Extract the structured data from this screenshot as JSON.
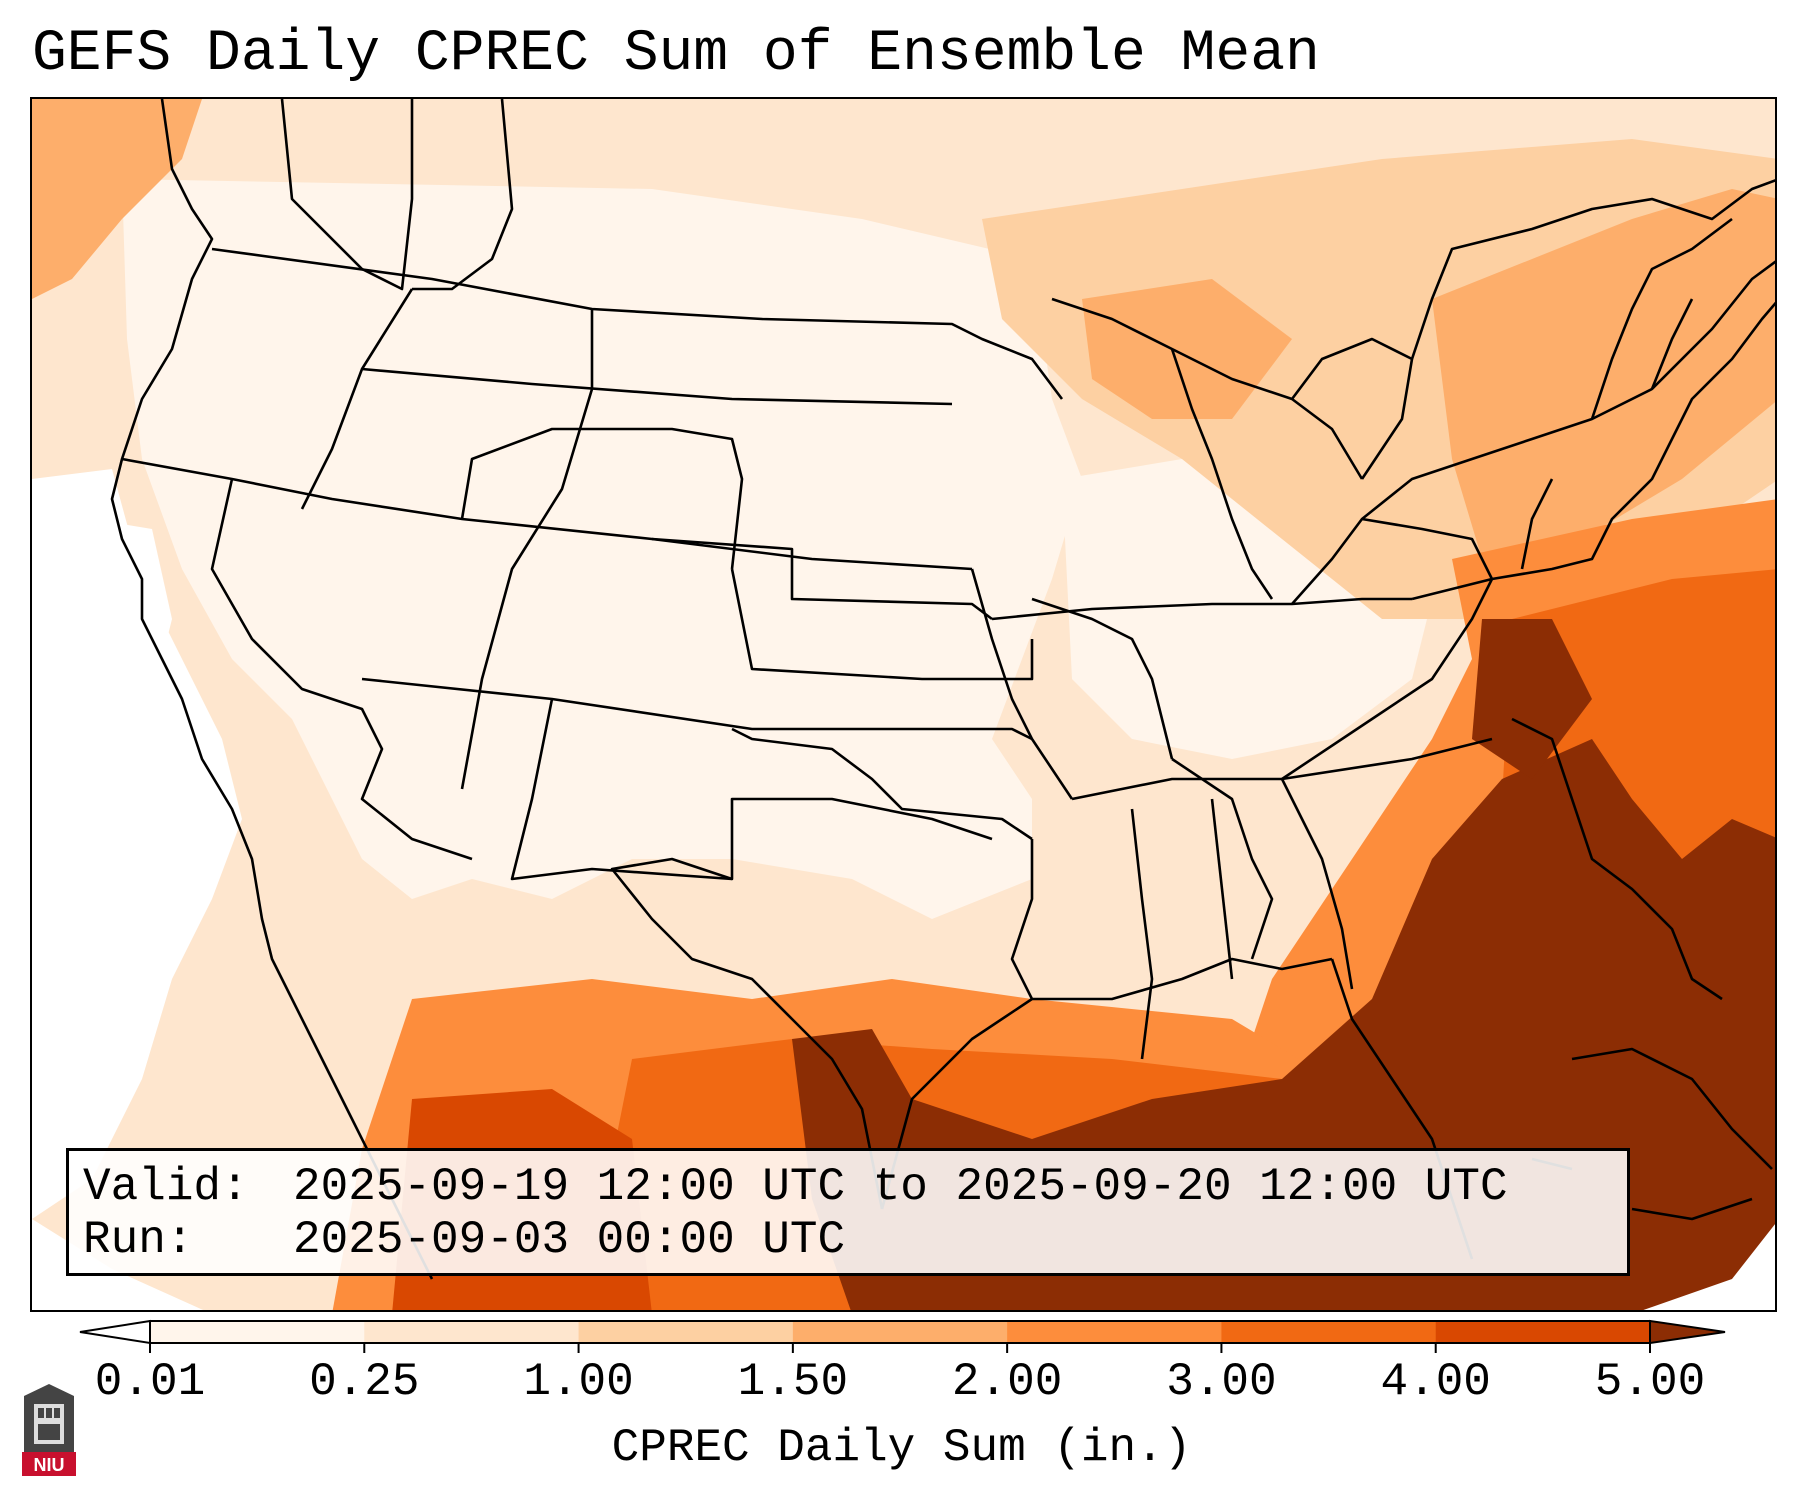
{
  "title": "GEFS Daily CPREC Sum of Ensemble Mean",
  "info": {
    "valid_key": "Valid:",
    "valid_value": "2025-09-19 12:00 UTC to 2025-09-20 12:00 UTC",
    "run_key": "Run:",
    "run_value": "2025-09-03 00:00 UTC"
  },
  "colorbar": {
    "label": "CPREC Daily Sum (in.)",
    "ticks": [
      "0.01",
      "0.25",
      "1.00",
      "1.50",
      "2.00",
      "3.00",
      "4.00",
      "5.00"
    ],
    "colors": [
      "#fff5eb",
      "#fee6ce",
      "#fdd0a2",
      "#fdae6b",
      "#fd8d3c",
      "#f16913",
      "#d94801",
      "#8c2d04"
    ],
    "under_color": "#ffffff",
    "over_color": "#8c2d04"
  },
  "logo": {
    "text": "NIU"
  },
  "colors": {
    "ocean_heavy": "#8c2d04",
    "border": "#000000"
  }
}
